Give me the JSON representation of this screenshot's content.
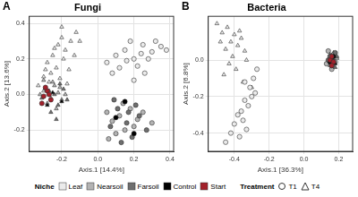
{
  "chart_data": [
    {
      "type": "scatter",
      "title": "Fungi",
      "annotations": [
        "A"
      ],
      "x_label": "Axis.1 [14.4%]",
      "y_label": "Axis.2 [13.6%]",
      "xlim": [
        -0.38,
        0.42
      ],
      "xticks": [
        -0.2,
        {
          "value": 0,
          "label": "0.0"
        },
        0.2,
        0.4
      ],
      "ylim": [
        -0.32,
        0.44
      ],
      "yticks": [
        -0.2,
        {
          "value": 0,
          "label": "0.0"
        },
        0.2,
        0.4
      ],
      "grid": true,
      "series": [
        {
          "name": "Leaf",
          "color": "#ebebeb",
          "marker": "triangle",
          "x": [
            -0.33,
            -0.3,
            -0.28,
            -0.25,
            -0.22,
            -0.2,
            -0.18,
            -0.15,
            -0.12,
            -0.26,
            -0.23,
            -0.19,
            -0.16,
            -0.3,
            -0.27,
            -0.21,
            -0.24,
            -0.17,
            -0.13,
            -0.29,
            -0.1,
            -0.2
          ],
          "values": [
            0.05,
            0.1,
            0.18,
            0.22,
            0.28,
            0.32,
            0.25,
            0.3,
            0.35,
            0.12,
            0.15,
            0.2,
            0.14,
            0.02,
            0.07,
            0.09,
            0.26,
            0.06,
            0.22,
            0.14,
            0.3,
            0.38
          ]
        },
        {
          "name": "Leaf",
          "color": "#ebebeb",
          "marker": "circle",
          "x": [
            0.05,
            0.1,
            0.15,
            0.2,
            0.25,
            0.3,
            0.35,
            0.12,
            0.18,
            0.22,
            0.28,
            0.32,
            0.08,
            0.16,
            0.24,
            0.38,
            0.2,
            0.26
          ],
          "values": [
            0.18,
            0.22,
            0.25,
            0.2,
            0.28,
            0.24,
            0.27,
            0.15,
            0.3,
            0.16,
            0.2,
            0.3,
            0.12,
            0.19,
            0.23,
            0.25,
            0.08,
            0.12
          ]
        },
        {
          "name": "Nearsoil",
          "color": "#b3b3b3",
          "marker": "triangle",
          "x": [
            -0.32,
            -0.29,
            -0.26,
            -0.24,
            -0.22,
            -0.2,
            -0.28,
            -0.25,
            -0.21,
            -0.18,
            -0.3,
            -0.23
          ],
          "values": [
            0.0,
            0.03,
            -0.02,
            0.05,
            0.01,
            -0.03,
            -0.05,
            0.07,
            0.04,
            0.0,
            0.08,
            -0.08
          ]
        },
        {
          "name": "Nearsoil",
          "color": "#b3b3b3",
          "marker": "circle",
          "x": [
            0.05,
            0.08,
            0.12,
            0.15,
            0.18,
            0.22,
            0.1,
            0.14,
            0.2,
            0.25,
            0.06,
            0.3
          ],
          "values": [
            -0.1,
            -0.15,
            -0.12,
            -0.2,
            -0.08,
            -0.14,
            -0.22,
            -0.05,
            -0.18,
            -0.1,
            -0.25,
            -0.16
          ]
        },
        {
          "name": "Farsoil",
          "color": "#6e6e6e",
          "marker": "triangle",
          "x": [
            -0.31,
            -0.27,
            -0.24,
            -0.22,
            -0.19,
            -0.26,
            -0.21,
            -0.29,
            -0.17,
            -0.23
          ],
          "values": [
            -0.02,
            0.02,
            0.0,
            -0.06,
            0.03,
            -0.1,
            0.06,
            0.04,
            -0.03,
            -0.14
          ]
        },
        {
          "name": "Farsoil",
          "color": "#6e6e6e",
          "marker": "circle",
          "x": [
            0.07,
            0.11,
            0.16,
            0.19,
            0.23,
            0.27,
            0.13,
            0.09,
            0.21,
            0.17
          ],
          "values": [
            -0.18,
            -0.08,
            -0.16,
            -0.24,
            -0.12,
            -0.2,
            -0.27,
            -0.03,
            -0.06,
            -0.1
          ]
        },
        {
          "name": "Control",
          "color": "#000000",
          "marker": "triangle",
          "x": [
            -0.25,
            -0.2,
            -0.28
          ],
          "values": [
            0.01,
            -0.04,
            -0.06
          ]
        },
        {
          "name": "Control",
          "color": "#000000",
          "marker": "circle",
          "x": [
            0.1,
            0.2,
            0.15
          ],
          "values": [
            -0.13,
            -0.22,
            -0.04
          ]
        },
        {
          "name": "Start",
          "color": "#a3202a",
          "marker": "circle",
          "x": [
            -0.3,
            -0.28,
            -0.26,
            -0.29,
            -0.27,
            -0.31
          ],
          "values": [
            -0.01,
            0.02,
            -0.03,
            0.04,
            0.0,
            -0.05
          ]
        }
      ]
    },
    {
      "type": "scatter",
      "title": "Bacteria",
      "annotations": [
        "B"
      ],
      "x_label": "Axis.1 [36.3%]",
      "y_label": "Axis.2 [6.8%]",
      "xlim": [
        -0.55,
        0.28
      ],
      "xticks": [
        -0.4,
        -0.2,
        {
          "value": 0,
          "label": "0.0"
        },
        0.2
      ],
      "ylim": [
        -0.5,
        0.24
      ],
      "yticks": [
        -0.4,
        -0.2,
        {
          "value": 0,
          "label": "0.0"
        }
      ],
      "grid": true,
      "series": [
        {
          "name": "Leaf",
          "color": "#ebebeb",
          "marker": "triangle",
          "x": [
            -0.5,
            -0.47,
            -0.44,
            -0.42,
            -0.4,
            -0.38,
            -0.36,
            -0.34,
            -0.45,
            -0.41,
            -0.37,
            -0.48,
            -0.43,
            -0.39,
            -0.33,
            -0.46,
            -0.35,
            -0.3
          ],
          "values": [
            0.2,
            0.15,
            0.18,
            0.1,
            0.14,
            0.08,
            0.12,
            0.05,
            0.06,
            0.02,
            0.16,
            0.1,
            -0.02,
            -0.05,
            0.0,
            -0.08,
            -0.12,
            -0.15
          ]
        },
        {
          "name": "Leaf",
          "color": "#ebebeb",
          "marker": "circle",
          "x": [
            -0.45,
            -0.42,
            -0.4,
            -0.38,
            -0.36,
            -0.34,
            -0.32,
            -0.3,
            -0.28,
            -0.35,
            -0.33,
            -0.31,
            -0.29,
            -0.37,
            -0.27,
            -0.34
          ],
          "values": [
            -0.45,
            -0.4,
            -0.35,
            -0.3,
            -0.28,
            -0.22,
            -0.25,
            -0.2,
            -0.18,
            -0.33,
            -0.38,
            -0.15,
            -0.1,
            -0.42,
            -0.05,
            -0.12
          ]
        },
        {
          "name": "Nearsoil",
          "color": "#b3b3b3",
          "marker": "triangle",
          "x": [
            0.14,
            0.16,
            0.18,
            0.15,
            0.17,
            0.19,
            0.16
          ],
          "values": [
            0.0,
            0.02,
            -0.01,
            -0.03,
            0.04,
            0.01,
            -0.04
          ]
        },
        {
          "name": "Nearsoil",
          "color": "#b3b3b3",
          "marker": "circle",
          "x": [
            0.13,
            0.15,
            0.17,
            0.16,
            0.14,
            0.18
          ],
          "values": [
            -0.02,
            0.01,
            0.03,
            -0.05,
            0.05,
            -0.01
          ]
        },
        {
          "name": "Farsoil",
          "color": "#6e6e6e",
          "marker": "triangle",
          "x": [
            0.15,
            0.17,
            0.19,
            0.16,
            0.18
          ],
          "values": [
            0.03,
            0.0,
            0.02,
            -0.02,
            -0.04
          ]
        },
        {
          "name": "Farsoil",
          "color": "#6e6e6e",
          "marker": "circle",
          "x": [
            0.14,
            0.16,
            0.18,
            0.15,
            0.17
          ],
          "values": [
            0.0,
            -0.03,
            0.04,
            0.02,
            -0.01
          ]
        },
        {
          "name": "Control",
          "color": "#000000",
          "marker": "triangle",
          "x": [
            0.16,
            0.18
          ],
          "values": [
            0.01,
            -0.02
          ]
        },
        {
          "name": "Control",
          "color": "#000000",
          "marker": "circle",
          "x": [
            0.15,
            0.17
          ],
          "values": [
            -0.01,
            0.02
          ]
        },
        {
          "name": "Start",
          "color": "#a3202a",
          "marker": "circle",
          "x": [
            0.15,
            0.16,
            0.17,
            0.16
          ],
          "values": [
            0.0,
            0.02,
            -0.01,
            -0.03
          ]
        }
      ]
    }
  ],
  "legend": {
    "position": "bottom",
    "groups": [
      {
        "title": "Niche",
        "items": [
          {
            "name": "Leaf",
            "color": "#ebebeb"
          },
          {
            "name": "Nearsoil",
            "color": "#b3b3b3"
          },
          {
            "name": "Farsoil",
            "color": "#6e6e6e"
          },
          {
            "name": "Control",
            "color": "#000000"
          },
          {
            "name": "Start",
            "color": "#a3202a"
          }
        ]
      },
      {
        "title": "Treatment",
        "items": [
          {
            "name": "T1",
            "marker": "circle"
          },
          {
            "name": "T4",
            "marker": "triangle"
          }
        ]
      }
    ]
  }
}
